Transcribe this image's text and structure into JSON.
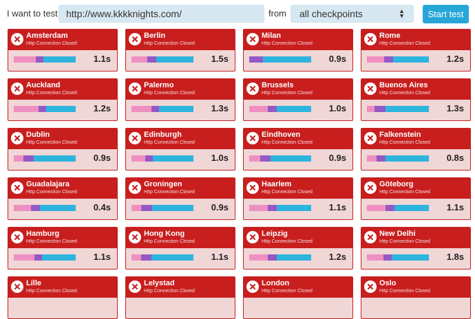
{
  "form": {
    "want_label": "I want to test",
    "url_value": "http://www.kkkknights.com/",
    "from_label": "from",
    "checkpoint_value": "all checkpoints",
    "start_label": "Start test"
  },
  "colors": {
    "card_header": "#c81e1e",
    "card_body": "#f1d6d6",
    "segment_dns": "#ef8fc1",
    "segment_connect": "#9459c6",
    "segment_wait": "#2eb5de",
    "button": "#27a6d9",
    "input_bg": "#d8e8f3"
  },
  "status_text": "Http Connection Closed",
  "checkpoints": [
    {
      "city": "Amsterdam",
      "time": "1.1s",
      "segments": [
        0.35,
        0.13,
        0.52
      ]
    },
    {
      "city": "Berlin",
      "time": "1.5s",
      "segments": [
        0.25,
        0.15,
        0.6
      ]
    },
    {
      "city": "Milan",
      "time": "0.9s",
      "segments": [
        0.0,
        0.22,
        0.78
      ]
    },
    {
      "city": "Rome",
      "time": "1.2s",
      "segments": [
        0.28,
        0.14,
        0.58
      ]
    },
    {
      "city": "Auckland",
      "time": "1.2s",
      "segments": [
        0.4,
        0.12,
        0.48
      ]
    },
    {
      "city": "Palermo",
      "time": "1.3s",
      "segments": [
        0.32,
        0.13,
        0.55
      ]
    },
    {
      "city": "Brussels",
      "time": "1.0s",
      "segments": [
        0.3,
        0.14,
        0.56
      ]
    },
    {
      "city": "Buenos Aires",
      "time": "1.3s",
      "segments": [
        0.12,
        0.18,
        0.7
      ]
    },
    {
      "city": "Dublin",
      "time": "0.9s",
      "segments": [
        0.15,
        0.17,
        0.68
      ]
    },
    {
      "city": "Edinburgh",
      "time": "1.0s",
      "segments": [
        0.22,
        0.13,
        0.65
      ]
    },
    {
      "city": "Eindhoven",
      "time": "0.9s",
      "segments": [
        0.18,
        0.17,
        0.65
      ]
    },
    {
      "city": "Falkenstein",
      "time": "0.8s",
      "segments": [
        0.15,
        0.15,
        0.7
      ]
    },
    {
      "city": "Guadalajara",
      "time": "0.4s",
      "segments": [
        0.28,
        0.14,
        0.58
      ]
    },
    {
      "city": "Groningen",
      "time": "0.9s",
      "segments": [
        0.15,
        0.18,
        0.67
      ]
    },
    {
      "city": "Haarlem",
      "time": "1.1s",
      "segments": [
        0.3,
        0.14,
        0.56
      ]
    },
    {
      "city": "Göteborg",
      "time": "1.1s",
      "segments": [
        0.3,
        0.14,
        0.56
      ]
    },
    {
      "city": "Hamburg",
      "time": "1.1s",
      "segments": [
        0.33,
        0.13,
        0.54
      ]
    },
    {
      "city": "Hong Kong",
      "time": "1.1s",
      "segments": [
        0.15,
        0.17,
        0.68
      ]
    },
    {
      "city": "Leipzig",
      "time": "1.2s",
      "segments": [
        0.3,
        0.14,
        0.56
      ]
    },
    {
      "city": "New Delhi",
      "time": "1.8s",
      "segments": [
        0.27,
        0.13,
        0.6
      ]
    },
    {
      "city": "Lille",
      "time": "",
      "segments": []
    },
    {
      "city": "Lelystad",
      "time": "",
      "segments": []
    },
    {
      "city": "London",
      "time": "",
      "segments": []
    },
    {
      "city": "Oslo",
      "time": "",
      "segments": []
    }
  ]
}
